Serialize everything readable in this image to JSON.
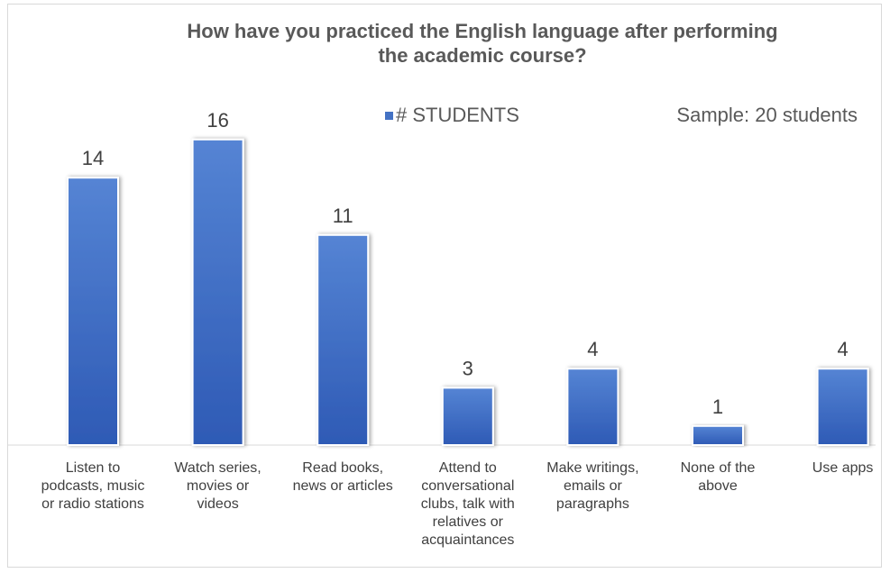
{
  "chart_data": {
    "type": "bar",
    "title_lines": [
      "How have you practiced the English language after performing",
      "the academic course?"
    ],
    "categories": [
      [
        "Listen to",
        "podcasts, music",
        "or radio stations"
      ],
      [
        "Watch series,",
        "movies or",
        "videos"
      ],
      [
        "Read books,",
        "news or articles"
      ],
      [
        "Attend to",
        "conversational",
        "clubs, talk with",
        "relatives or",
        "acquaintances"
      ],
      [
        "Make writings,",
        "emails or",
        "paragraphs"
      ],
      [
        "None of the",
        "above"
      ],
      [
        "Use apps"
      ]
    ],
    "series": [
      {
        "name": "# STUDENTS",
        "values": [
          14,
          16,
          11,
          3,
          4,
          1,
          4
        ]
      }
    ],
    "annotation": "Sample: 20 students",
    "legend_position": "top",
    "ylim": [
      0,
      16
    ],
    "grid": false,
    "colors": {
      "bar_top": "#4f7fd0",
      "bar_bottom": "#2f59b3",
      "bar_edge": "#ffffff",
      "text": "#595959",
      "axis": "#d9d9d9",
      "legend_marker": "#4472c4"
    }
  }
}
